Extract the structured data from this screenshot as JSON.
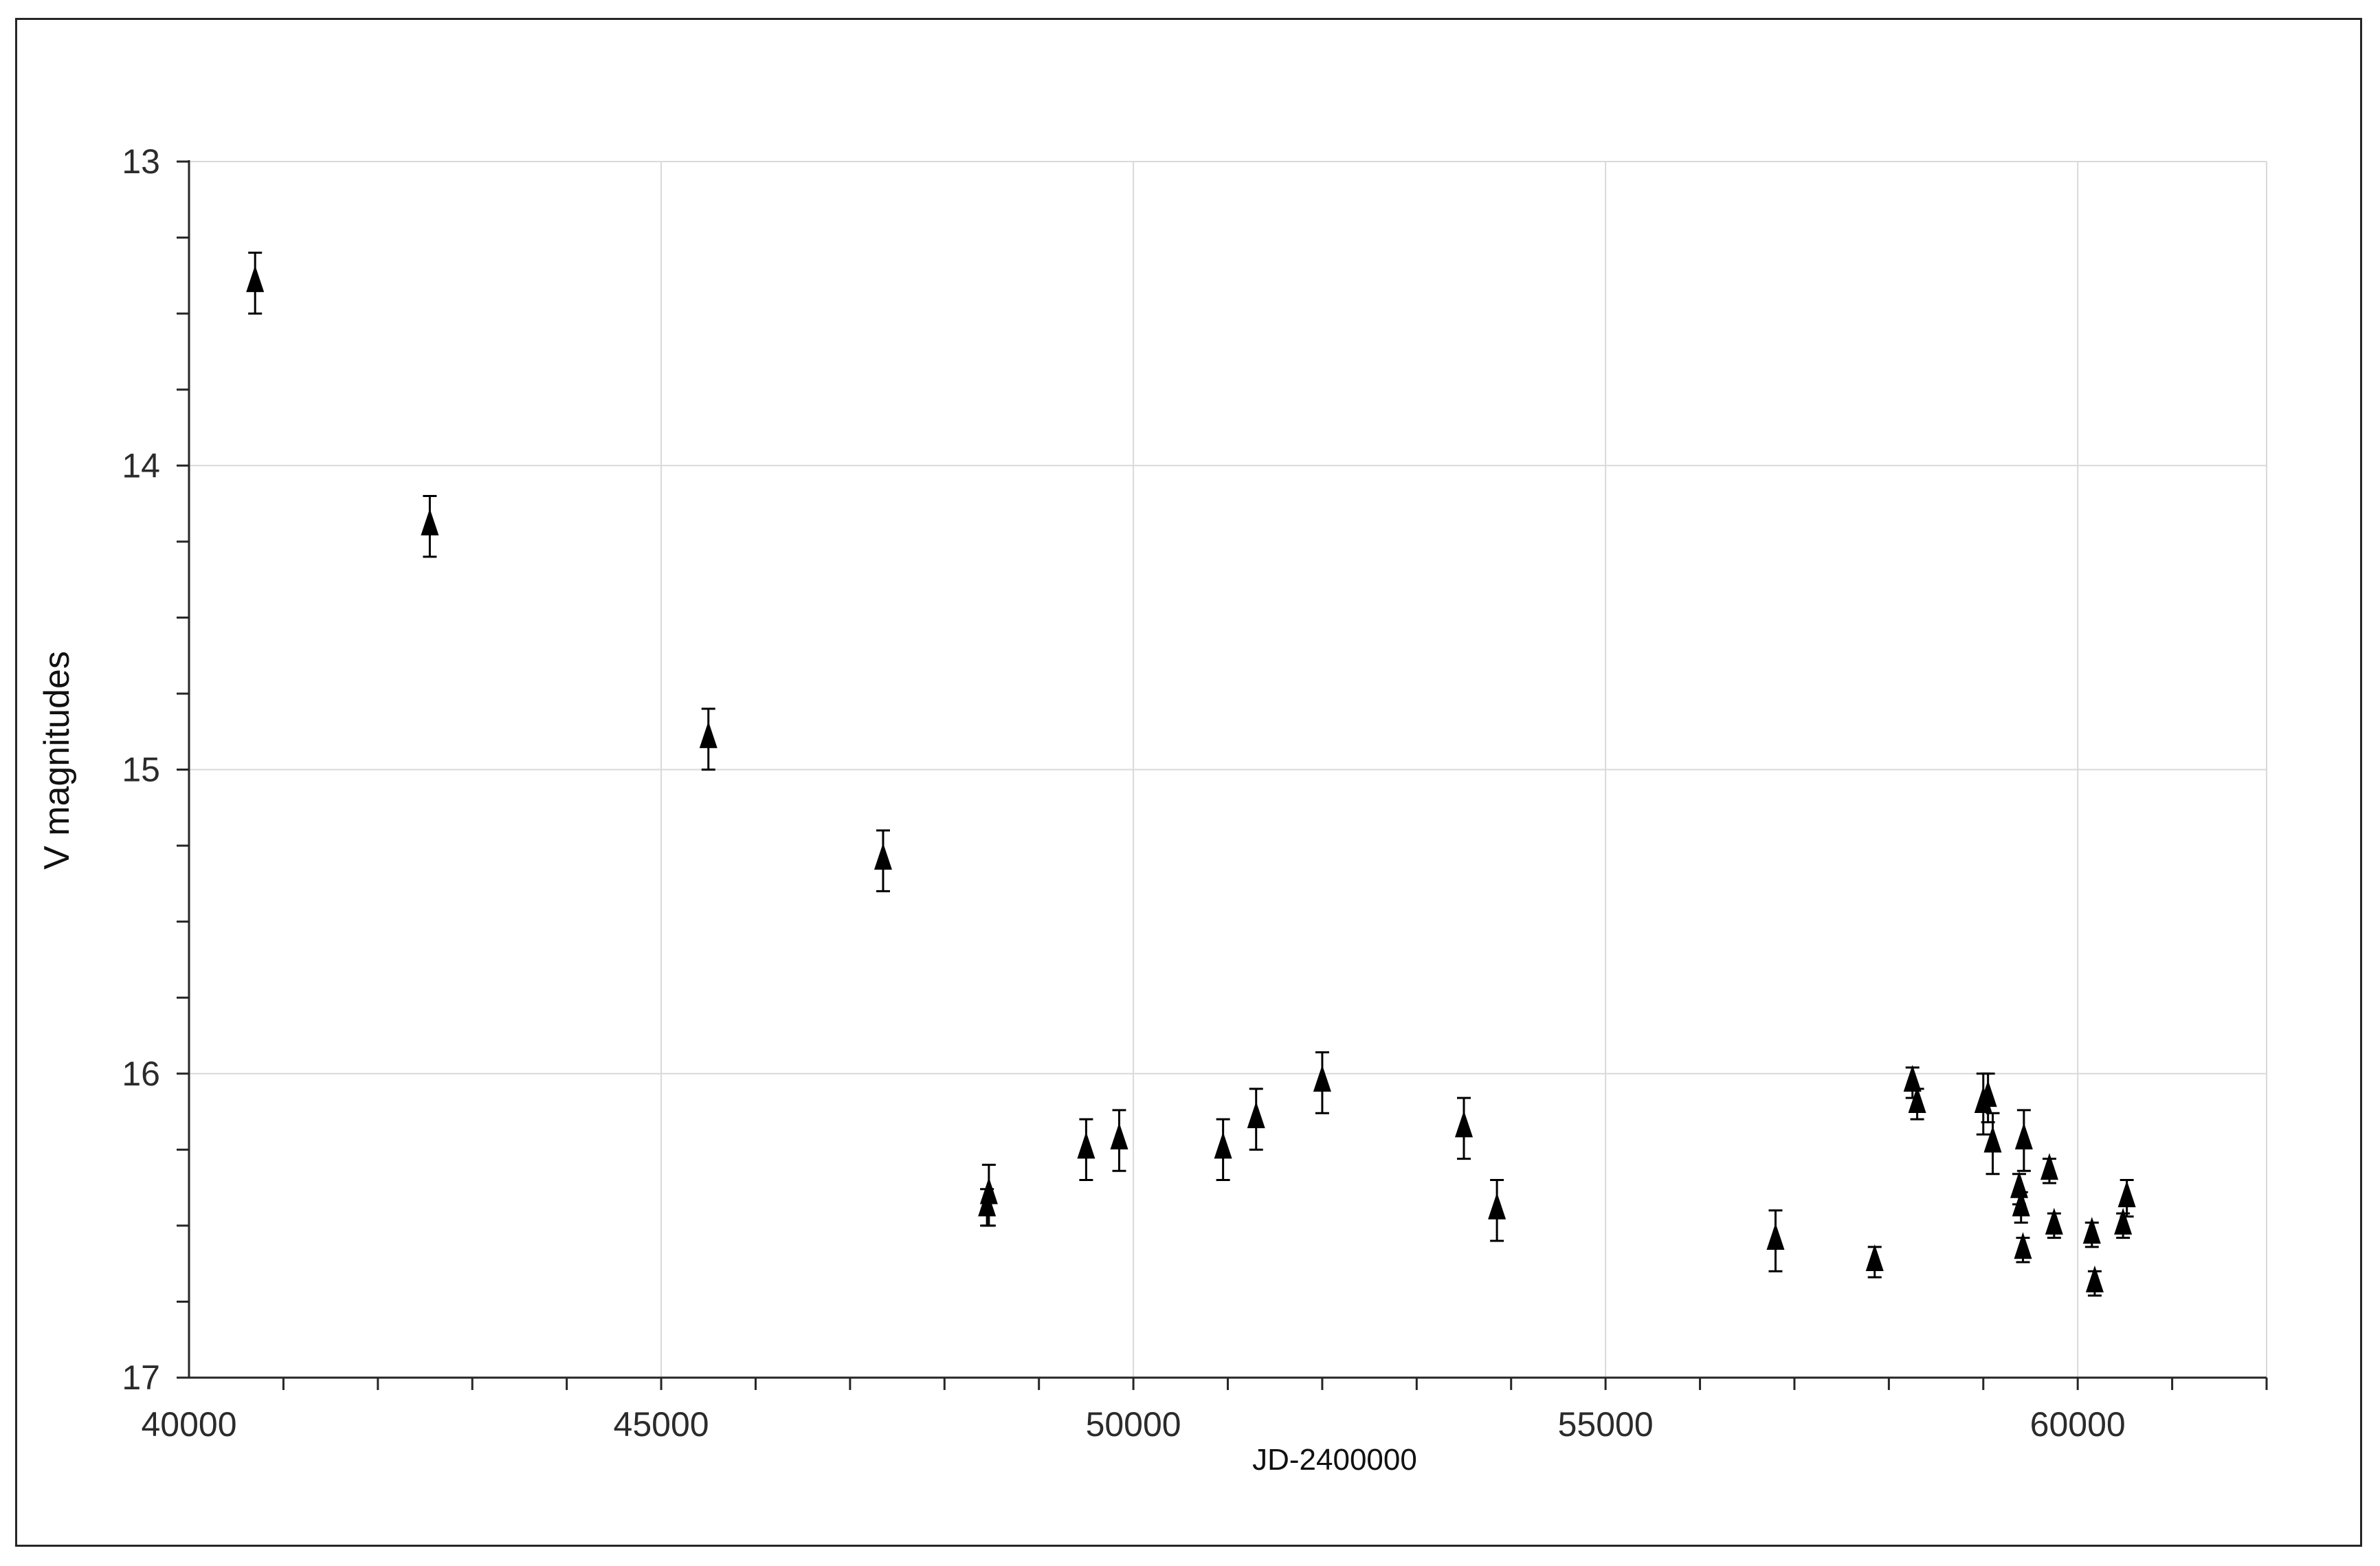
{
  "chart_data": {
    "type": "scatter",
    "title": "",
    "xlabel": "JD-2400000",
    "ylabel": "V magnitudes",
    "xlim": [
      40000,
      62000
    ],
    "ylim": [
      13,
      17
    ],
    "y_inverted": true,
    "grid": true,
    "legend": "none",
    "marker": "triangle",
    "x_ticks": [
      40000,
      45000,
      50000,
      55000,
      60000
    ],
    "x_tick_labels": [
      "40000",
      "45000",
      "50000",
      "55000",
      "60000"
    ],
    "x_minor_step": 1000,
    "y_ticks": [
      13,
      14,
      15,
      16,
      17
    ],
    "y_tick_labels": [
      "13",
      "14",
      "15",
      "16",
      "17"
    ],
    "y_minor_step": 0.25,
    "colors": {
      "marker": "#000000",
      "grid": "#d9d9d9",
      "axis": "#262626"
    },
    "points": [
      {
        "x": 40700,
        "y": 13.4,
        "err": 0.1
      },
      {
        "x": 42550,
        "y": 14.2,
        "err": 0.1
      },
      {
        "x": 45500,
        "y": 14.9,
        "err": 0.1
      },
      {
        "x": 47350,
        "y": 15.3,
        "err": 0.1
      },
      {
        "x": 48450,
        "y": 16.44,
        "err": 0.06
      },
      {
        "x": 48470,
        "y": 16.4,
        "err": 0.1
      },
      {
        "x": 49500,
        "y": 16.25,
        "err": 0.1
      },
      {
        "x": 49850,
        "y": 16.22,
        "err": 0.1
      },
      {
        "x": 50950,
        "y": 16.25,
        "err": 0.1
      },
      {
        "x": 51300,
        "y": 16.15,
        "err": 0.1
      },
      {
        "x": 52000,
        "y": 16.03,
        "err": 0.1
      },
      {
        "x": 53500,
        "y": 16.18,
        "err": 0.1
      },
      {
        "x": 53850,
        "y": 16.45,
        "err": 0.1
      },
      {
        "x": 56800,
        "y": 16.55,
        "err": 0.1
      },
      {
        "x": 57850,
        "y": 16.62,
        "err": 0.05
      },
      {
        "x": 58250,
        "y": 16.03,
        "err": 0.05
      },
      {
        "x": 58300,
        "y": 16.1,
        "err": 0.05
      },
      {
        "x": 59000,
        "y": 16.1,
        "err": 0.1
      },
      {
        "x": 59050,
        "y": 16.08,
        "err": 0.08
      },
      {
        "x": 59100,
        "y": 16.23,
        "err": 0.1
      },
      {
        "x": 59380,
        "y": 16.38,
        "err": 0.05
      },
      {
        "x": 59400,
        "y": 16.44,
        "err": 0.05
      },
      {
        "x": 59420,
        "y": 16.58,
        "err": 0.04
      },
      {
        "x": 59430,
        "y": 16.22,
        "err": 0.1
      },
      {
        "x": 59700,
        "y": 16.32,
        "err": 0.04
      },
      {
        "x": 59750,
        "y": 16.5,
        "err": 0.04
      },
      {
        "x": 60150,
        "y": 16.53,
        "err": 0.04
      },
      {
        "x": 60180,
        "y": 16.69,
        "err": 0.04
      },
      {
        "x": 60480,
        "y": 16.5,
        "err": 0.04
      },
      {
        "x": 60520,
        "y": 16.41,
        "err": 0.06
      }
    ]
  }
}
